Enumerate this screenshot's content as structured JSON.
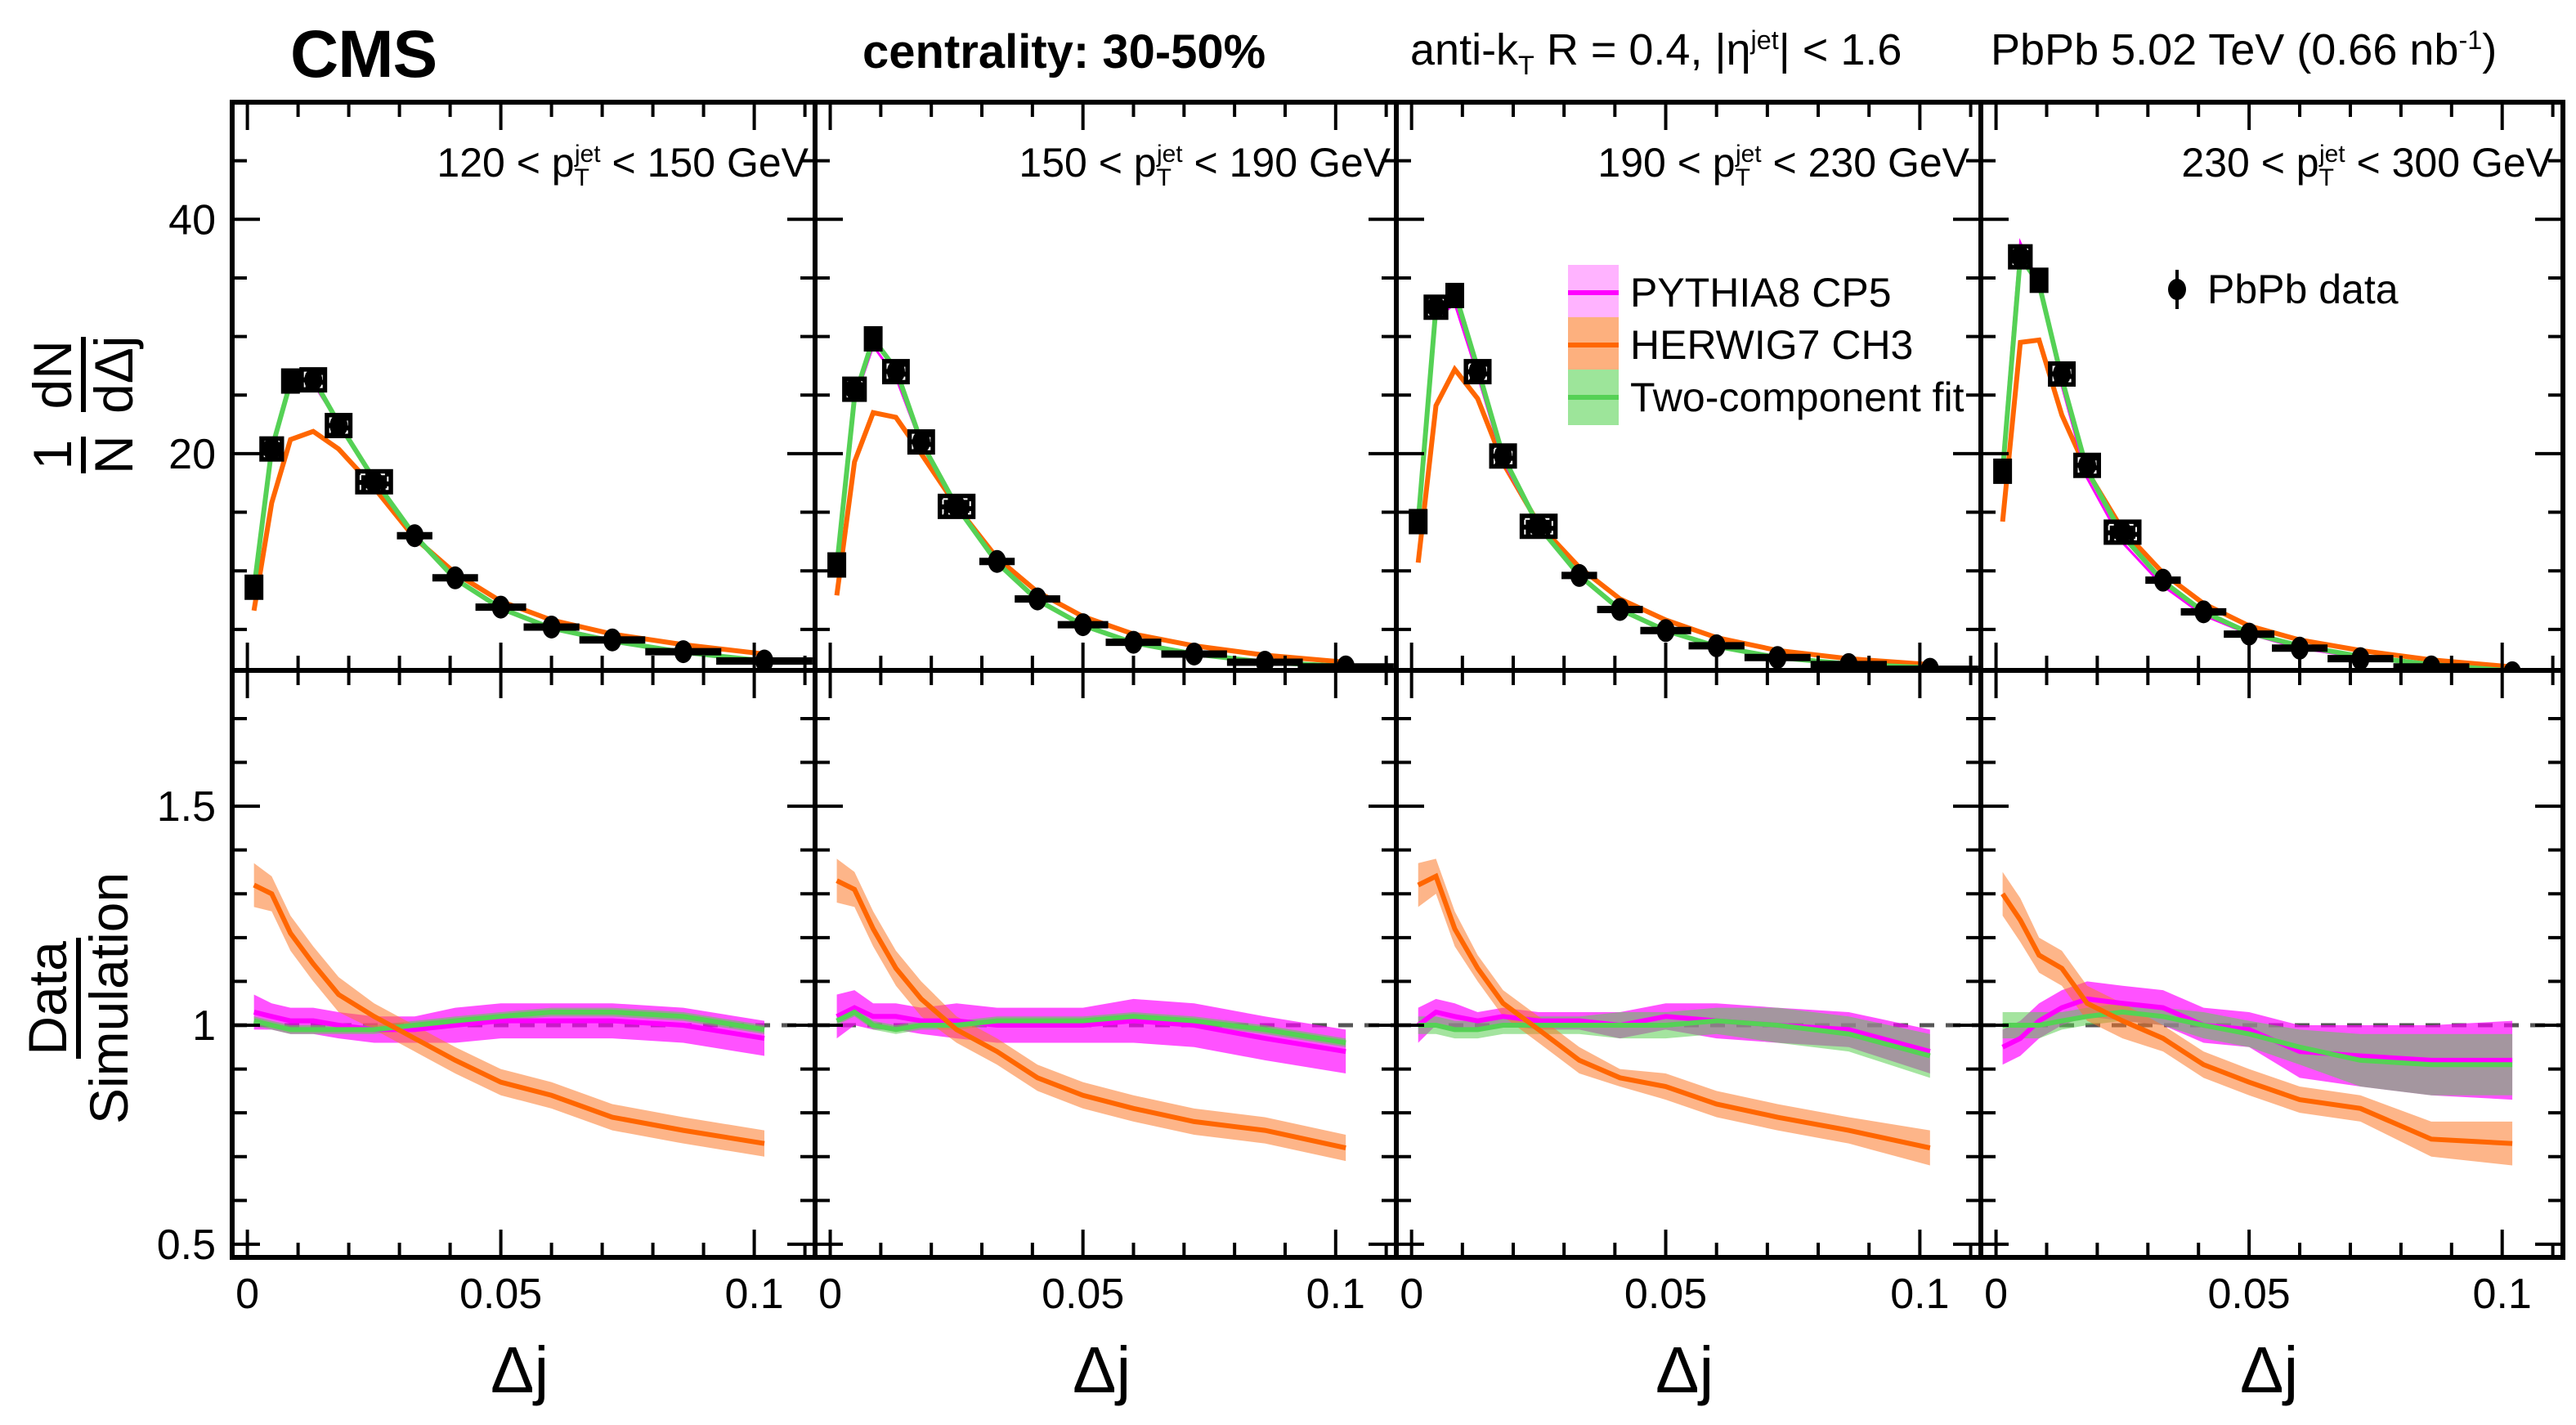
{
  "header": {
    "experiment": "CMS",
    "centrality": "centrality: 30-50%",
    "jet_def_prefix": "anti-k",
    "jet_def_sub": "T",
    "jet_def_mid": " R = 0.4, |η",
    "jet_def_sup": "jet",
    "jet_def_suffix": "| < 1.6",
    "lumi_prefix": "PbPb 5.02 TeV (0.66 nb",
    "lumi_sup": "-1",
    "lumi_suffix": ")"
  },
  "axes": {
    "upper_ylabel_num": "1",
    "upper_ylabel_den": "N",
    "upper_ylabel_num2": "dN",
    "upper_ylabel_den2": "dΔj",
    "lower_ylabel_num": "Data",
    "lower_ylabel_den": "Simulation",
    "xlabel": "Δj",
    "upper_yticks": [
      "20",
      "40"
    ],
    "lower_yticks": [
      "0.5",
      "1",
      "1.5"
    ],
    "xticks": [
      "0",
      "0.05",
      "0.1"
    ]
  },
  "legend": {
    "data_label": "PbPb data",
    "items": [
      {
        "name": "PYTHIA8 CP5",
        "line": "#ff00ff",
        "band": "#ffb3ff"
      },
      {
        "name": "HERWIG7 CH3",
        "line": "#ff6600",
        "band": "#fdb07e"
      },
      {
        "name": "Two-component fit",
        "line": "#55d155",
        "band": "#9de59a"
      }
    ]
  },
  "chart_data": [
    {
      "type": "line",
      "title": "120 < pT jet < 150 GeV",
      "pt_label": {
        "lo": "120",
        "hi": "150 GeV"
      },
      "xlabel": "Δj",
      "ylabel": "1/N dN/dΔj",
      "xlim": [
        -0.003,
        0.112
      ],
      "ylim_upper": [
        1.5,
        50
      ],
      "ylim_lower": [
        0.47,
        1.81
      ],
      "x": [
        0.0013,
        0.0048,
        0.0085,
        0.013,
        0.018,
        0.025,
        0.033,
        0.041,
        0.05,
        0.06,
        0.072,
        0.086,
        0.102
      ],
      "xerr": [
        0.0013,
        0.0022,
        0.0015,
        0.0025,
        0.0025,
        0.0035,
        0.0035,
        0.0045,
        0.005,
        0.0055,
        0.0065,
        0.0075,
        0.0095
      ],
      "data": [
        8.6,
        20.4,
        26.2,
        26.3,
        22.4,
        17.6,
        13.0,
        9.4,
        6.9,
        5.2,
        4.1,
        3.1,
        2.3
      ],
      "series": [
        {
          "name": "PYTHIA8 CP5",
          "values": [
            8.4,
            20.3,
            25.8,
            26.0,
            22.6,
            17.8,
            13.1,
            9.4,
            6.8,
            5.2,
            4.1,
            3.1,
            2.35
          ],
          "ratio": [
            1.03,
            1.02,
            1.01,
            1.01,
            1.0,
            0.99,
            0.99,
            1.0,
            1.01,
            1.01,
            1.01,
            1.0,
            0.97
          ],
          "ratio_err": [
            0.04,
            0.03,
            0.03,
            0.03,
            0.03,
            0.03,
            0.03,
            0.04,
            0.04,
            0.04,
            0.04,
            0.04,
            0.04
          ]
        },
        {
          "name": "HERWIG7 CH3",
          "values": [
            6.6,
            15.8,
            21.2,
            21.9,
            20.4,
            17.1,
            12.8,
            9.8,
            7.4,
            5.8,
            4.6,
            3.7,
            2.9
          ],
          "ratio": [
            1.32,
            1.3,
            1.21,
            1.14,
            1.07,
            1.02,
            0.97,
            0.92,
            0.87,
            0.84,
            0.79,
            0.76,
            0.73
          ],
          "ratio_err": [
            0.05,
            0.04,
            0.04,
            0.04,
            0.04,
            0.03,
            0.03,
            0.03,
            0.03,
            0.03,
            0.03,
            0.03,
            0.03
          ]
        },
        {
          "name": "Two-component fit",
          "values": [
            8.5,
            20.4,
            26.1,
            26.4,
            22.6,
            17.8,
            13.0,
            9.3,
            6.8,
            5.1,
            4.0,
            3.05,
            2.3
          ],
          "ratio": [
            1.01,
            1.0,
            0.99,
            0.99,
            0.99,
            0.99,
            1.0,
            1.01,
            1.02,
            1.03,
            1.03,
            1.02,
            0.99
          ],
          "ratio_err": [
            0.01,
            0.01,
            0.01,
            0.01,
            0.01,
            0.01,
            0.01,
            0.01,
            0.01,
            0.01,
            0.01,
            0.01,
            0.01
          ]
        }
      ]
    },
    {
      "type": "line",
      "title": "150 < pT jet < 190 GeV",
      "pt_label": {
        "lo": "150",
        "hi": "190 GeV"
      },
      "xlabel": "Δj",
      "ylabel": "1/N dN/dΔj",
      "xlim": [
        -0.003,
        0.112
      ],
      "ylim_upper": [
        1.5,
        50
      ],
      "ylim_lower": [
        0.47,
        1.81
      ],
      "x": [
        0.0013,
        0.0048,
        0.0085,
        0.013,
        0.018,
        0.025,
        0.033,
        0.041,
        0.05,
        0.06,
        0.072,
        0.086,
        0.102
      ],
      "xerr": [
        0.0013,
        0.0022,
        0.0015,
        0.0025,
        0.0025,
        0.0035,
        0.0035,
        0.0045,
        0.005,
        0.0055,
        0.0065,
        0.0075,
        0.0095
      ],
      "data": [
        10.5,
        25.5,
        29.8,
        27.0,
        21.0,
        15.5,
        10.8,
        7.6,
        5.4,
        3.9,
        2.9,
        2.2,
        1.8
      ],
      "series": [
        {
          "name": "PYTHIA8 CP5",
          "values": [
            10.3,
            24.5,
            29.2,
            26.5,
            20.8,
            15.3,
            10.8,
            7.6,
            5.4,
            3.9,
            2.9,
            2.25,
            1.9
          ],
          "ratio": [
            1.02,
            1.04,
            1.02,
            1.02,
            1.01,
            1.01,
            1.0,
            1.0,
            1.0,
            1.01,
            1.0,
            0.97,
            0.94
          ],
          "ratio_err": [
            0.05,
            0.04,
            0.03,
            0.03,
            0.03,
            0.04,
            0.04,
            0.04,
            0.04,
            0.05,
            0.05,
            0.05,
            0.05
          ]
        },
        {
          "name": "HERWIG7 CH3",
          "values": [
            7.9,
            19.3,
            23.5,
            23.1,
            20.0,
            15.5,
            11.1,
            8.2,
            6.1,
            4.6,
            3.6,
            2.8,
            2.2
          ],
          "ratio": [
            1.33,
            1.31,
            1.22,
            1.13,
            1.06,
            0.99,
            0.94,
            0.88,
            0.84,
            0.81,
            0.78,
            0.76,
            0.72
          ],
          "ratio_err": [
            0.05,
            0.04,
            0.04,
            0.04,
            0.04,
            0.03,
            0.03,
            0.03,
            0.03,
            0.03,
            0.03,
            0.03,
            0.03
          ]
        },
        {
          "name": "Two-component fit",
          "values": [
            10.4,
            24.8,
            29.8,
            27.2,
            21.0,
            15.5,
            10.7,
            7.5,
            5.35,
            3.85,
            2.9,
            2.2,
            1.85
          ],
          "ratio": [
            1.01,
            1.03,
            1.0,
            0.99,
            1.0,
            1.0,
            1.01,
            1.01,
            1.01,
            1.02,
            1.01,
            0.99,
            0.96
          ],
          "ratio_err": [
            0.01,
            0.01,
            0.01,
            0.01,
            0.01,
            0.01,
            0.01,
            0.01,
            0.01,
            0.01,
            0.01,
            0.01,
            0.01
          ]
        }
      ]
    },
    {
      "type": "line",
      "title": "190 < pT jet < 230 GeV",
      "pt_label": {
        "lo": "190",
        "hi": "230 GeV"
      },
      "xlabel": "Δj",
      "ylabel": "1/N dN/dΔj",
      "xlim": [
        -0.003,
        0.112
      ],
      "ylim_upper": [
        1.5,
        50
      ],
      "ylim_lower": [
        0.47,
        1.81
      ],
      "x": [
        0.0013,
        0.0048,
        0.0085,
        0.013,
        0.018,
        0.025,
        0.033,
        0.041,
        0.05,
        0.06,
        0.072,
        0.086,
        0.102
      ],
      "xerr": [
        0.0013,
        0.0022,
        0.0015,
        0.0025,
        0.0025,
        0.0035,
        0.0035,
        0.0045,
        0.005,
        0.0055,
        0.0065,
        0.0075,
        0.0095
      ],
      "data": [
        14.2,
        32.5,
        33.5,
        27.0,
        19.8,
        13.8,
        9.6,
        6.7,
        4.9,
        3.6,
        2.6,
        2.0,
        1.6
      ],
      "series": [
        {
          "name": "PYTHIA8 CP5",
          "values": [
            14.2,
            31.5,
            32.8,
            26.7,
            19.4,
            13.7,
            9.5,
            6.7,
            4.8,
            3.55,
            2.6,
            2.0,
            1.7
          ],
          "ratio": [
            1.0,
            1.03,
            1.02,
            1.01,
            1.02,
            1.01,
            1.01,
            1.0,
            1.02,
            1.01,
            1.0,
            0.99,
            0.94
          ],
          "ratio_err": [
            0.04,
            0.03,
            0.03,
            0.02,
            0.02,
            0.02,
            0.02,
            0.03,
            0.03,
            0.04,
            0.04,
            0.04,
            0.05
          ]
        },
        {
          "name": "HERWIG7 CH3",
          "values": [
            10.7,
            24.1,
            27.2,
            24.7,
            19.2,
            14.0,
            10.3,
            7.6,
            5.8,
            4.3,
            3.2,
            2.5,
            2.0
          ],
          "ratio": [
            1.32,
            1.34,
            1.22,
            1.13,
            1.05,
            0.99,
            0.92,
            0.88,
            0.86,
            0.82,
            0.79,
            0.76,
            0.72
          ],
          "ratio_err": [
            0.05,
            0.04,
            0.04,
            0.03,
            0.03,
            0.03,
            0.03,
            0.02,
            0.03,
            0.03,
            0.03,
            0.03,
            0.04
          ]
        },
        {
          "name": "Two-component fit",
          "values": [
            14.2,
            32.5,
            33.8,
            27.3,
            19.8,
            13.8,
            9.6,
            6.7,
            4.9,
            3.55,
            2.6,
            2.05,
            1.72
          ],
          "ratio": [
            1.0,
            1.0,
            0.99,
            0.99,
            1.0,
            1.0,
            1.0,
            1.0,
            1.0,
            1.01,
            1.0,
            0.98,
            0.93
          ],
          "ratio_err": [
            0.02,
            0.02,
            0.02,
            0.02,
            0.02,
            0.02,
            0.02,
            0.03,
            0.03,
            0.03,
            0.04,
            0.04,
            0.05
          ]
        }
      ]
    },
    {
      "type": "line",
      "title": "230 < pT jet < 300 GeV",
      "pt_label": {
        "lo": "230",
        "hi": "300 GeV"
      },
      "xlabel": "Δj",
      "ylabel": "1/N dN/dΔj",
      "xlim": [
        -0.003,
        0.112
      ],
      "ylim_upper": [
        1.5,
        50
      ],
      "ylim_lower": [
        0.47,
        1.81
      ],
      "x": [
        0.0013,
        0.0048,
        0.0085,
        0.013,
        0.018,
        0.025,
        0.033,
        0.041,
        0.05,
        0.06,
        0.072,
        0.086,
        0.102
      ],
      "xerr": [
        0.0013,
        0.0022,
        0.0015,
        0.0025,
        0.0025,
        0.0035,
        0.0035,
        0.0045,
        0.005,
        0.0055,
        0.0065,
        0.0075,
        0.0095
      ],
      "data": [
        18.5,
        36.8,
        34.8,
        26.8,
        19.0,
        13.3,
        9.2,
        6.5,
        4.6,
        3.4,
        2.5,
        1.8,
        1.3
      ],
      "series": [
        {
          "name": "PYTHIA8 CP5",
          "values": [
            19.5,
            38.0,
            34.5,
            25.8,
            17.9,
            12.4,
            8.7,
            6.2,
            4.6,
            3.4,
            2.6,
            1.9,
            1.4
          ],
          "ratio": [
            0.95,
            0.97,
            1.01,
            1.04,
            1.06,
            1.05,
            1.04,
            1.0,
            0.99,
            0.94,
            0.93,
            0.92,
            0.92
          ],
          "ratio_err": [
            0.04,
            0.04,
            0.04,
            0.04,
            0.04,
            0.04,
            0.04,
            0.04,
            0.04,
            0.06,
            0.07,
            0.08,
            0.09
          ]
        },
        {
          "name": "HERWIG7 CH3",
          "values": [
            14.2,
            29.5,
            29.7,
            23.3,
            18.5,
            13.5,
            9.8,
            7.2,
            5.3,
            4.1,
            3.2,
            2.4,
            1.8
          ],
          "ratio": [
            1.3,
            1.24,
            1.16,
            1.13,
            1.05,
            1.01,
            0.97,
            0.91,
            0.87,
            0.83,
            0.81,
            0.74,
            0.73
          ],
          "ratio_err": [
            0.05,
            0.05,
            0.04,
            0.04,
            0.04,
            0.04,
            0.03,
            0.03,
            0.03,
            0.03,
            0.03,
            0.04,
            0.05
          ]
        },
        {
          "name": "Two-component fit",
          "values": [
            18.5,
            36.8,
            34.5,
            26.4,
            18.6,
            13.0,
            9.1,
            6.5,
            4.7,
            3.6,
            2.7,
            2.0,
            1.45
          ],
          "ratio": [
            1.0,
            1.0,
            1.0,
            1.01,
            1.02,
            1.03,
            1.02,
            1.0,
            0.98,
            0.95,
            0.92,
            0.91,
            0.91
          ],
          "ratio_err": [
            0.03,
            0.03,
            0.03,
            0.02,
            0.02,
            0.02,
            0.02,
            0.03,
            0.03,
            0.04,
            0.06,
            0.07,
            0.07
          ]
        }
      ]
    }
  ]
}
